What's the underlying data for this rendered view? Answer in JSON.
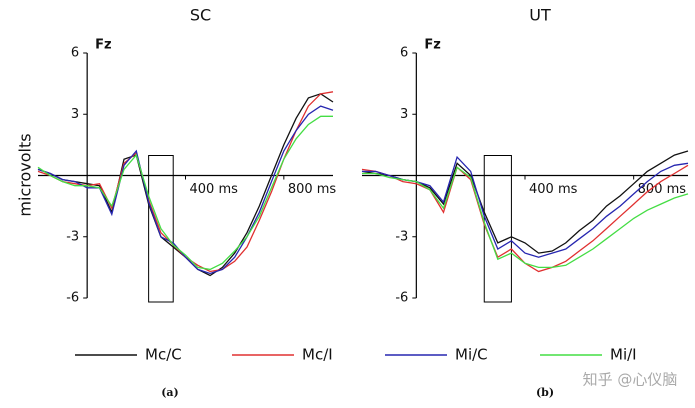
{
  "chart_data": [
    {
      "type": "line",
      "title": "SC",
      "annotation": "Fz",
      "y_label": "microvolts",
      "caption": "(a)",
      "x": [
        -200,
        -150,
        -100,
        -50,
        0,
        50,
        100,
        150,
        200,
        250,
        300,
        350,
        400,
        450,
        500,
        550,
        600,
        650,
        700,
        750,
        800,
        850,
        900,
        950,
        1000
      ],
      "xlim": [
        -200,
        1000
      ],
      "xticks": [
        {
          "value": 400,
          "label": "400 ms"
        },
        {
          "value": 800,
          "label": "800 ms"
        }
      ],
      "ylim": [
        -6,
        6
      ],
      "yticks": [
        -6,
        -3,
        3,
        6
      ],
      "highlight_window": [
        250,
        350
      ],
      "series": [
        {
          "name": "Mc/C",
          "color": "#111111",
          "values": [
            0.3,
            0.1,
            -0.2,
            -0.3,
            -0.4,
            -0.5,
            -1.8,
            0.8,
            1.0,
            -1.4,
            -3.0,
            -3.5,
            -4.0,
            -4.6,
            -4.9,
            -4.5,
            -3.8,
            -2.8,
            -1.5,
            0,
            1.5,
            2.8,
            3.8,
            4.0,
            3.6
          ]
        },
        {
          "name": "Mc/I",
          "color": "#e03030",
          "values": [
            0.2,
            0.0,
            -0.3,
            -0.4,
            -0.5,
            -0.4,
            -1.6,
            0.6,
            1.1,
            -1.2,
            -2.8,
            -3.4,
            -4.0,
            -4.4,
            -4.7,
            -4.6,
            -4.2,
            -3.5,
            -2.2,
            -0.8,
            0.8,
            2.2,
            3.4,
            4.0,
            4.1
          ]
        },
        {
          "name": "Mi/C",
          "color": "#2626b0",
          "values": [
            0.3,
            0.1,
            -0.2,
            -0.3,
            -0.6,
            -0.6,
            -1.9,
            0.5,
            1.2,
            -1.3,
            -3.0,
            -3.3,
            -4.0,
            -4.6,
            -4.8,
            -4.6,
            -4.0,
            -3.0,
            -1.8,
            -0.3,
            1.2,
            2.2,
            3.0,
            3.4,
            3.2
          ]
        },
        {
          "name": "Mi/I",
          "color": "#44dd44",
          "values": [
            0.4,
            0.0,
            -0.3,
            -0.5,
            -0.5,
            -0.6,
            -1.5,
            0.3,
            1.0,
            -1.0,
            -2.6,
            -3.4,
            -3.9,
            -4.5,
            -4.6,
            -4.3,
            -3.7,
            -3.0,
            -2.0,
            -0.6,
            0.8,
            1.8,
            2.5,
            2.9,
            2.9
          ]
        }
      ]
    },
    {
      "type": "line",
      "title": "UT",
      "annotation": "Fz",
      "caption": "(b)",
      "x": [
        -200,
        -150,
        -100,
        -50,
        0,
        50,
        100,
        150,
        200,
        250,
        300,
        350,
        400,
        450,
        500,
        550,
        600,
        650,
        700,
        750,
        800,
        850,
        900,
        950,
        1000
      ],
      "xlim": [
        -200,
        1000
      ],
      "xticks": [
        {
          "value": 400,
          "label": "400 ms"
        },
        {
          "value": 800,
          "label": "800 ms"
        }
      ],
      "ylim": [
        -6,
        6
      ],
      "yticks": [
        -6,
        -3,
        3,
        6
      ],
      "highlight_window": [
        250,
        350
      ],
      "series": [
        {
          "name": "Mc/C",
          "color": "#111111",
          "values": [
            0.2,
            0.1,
            0,
            -0.2,
            -0.3,
            -0.6,
            -1.4,
            0.6,
            0,
            -1.8,
            -3.3,
            -3.0,
            -3.3,
            -3.8,
            -3.7,
            -3.3,
            -2.7,
            -2.2,
            -1.5,
            -1.0,
            -0.4,
            0.2,
            0.6,
            1.0,
            1.2
          ]
        },
        {
          "name": "Mc/I",
          "color": "#e03030",
          "values": [
            0.3,
            0.2,
            0,
            -0.3,
            -0.4,
            -0.7,
            -1.8,
            0.4,
            -0.2,
            -2.4,
            -4.0,
            -3.6,
            -4.3,
            -4.7,
            -4.5,
            -4.2,
            -3.7,
            -3.2,
            -2.6,
            -2.0,
            -1.4,
            -0.8,
            -0.3,
            0.1,
            0.5
          ]
        },
        {
          "name": "Mi/C",
          "color": "#2626b0",
          "values": [
            0.2,
            0.2,
            0,
            -0.2,
            -0.3,
            -0.5,
            -1.3,
            0.9,
            0.2,
            -2.0,
            -3.6,
            -3.2,
            -3.8,
            -4.0,
            -3.8,
            -3.6,
            -3.1,
            -2.6,
            -2.0,
            -1.5,
            -0.9,
            -0.3,
            0.2,
            0.5,
            0.6
          ]
        },
        {
          "name": "Mi/I",
          "color": "#44dd44",
          "values": [
            0.1,
            0.1,
            -0.1,
            -0.2,
            -0.3,
            -0.7,
            -1.6,
            0.4,
            -0.1,
            -2.3,
            -4.1,
            -3.8,
            -4.3,
            -4.5,
            -4.5,
            -4.4,
            -4.0,
            -3.6,
            -3.1,
            -2.6,
            -2.1,
            -1.7,
            -1.4,
            -1.1,
            -0.9
          ]
        }
      ]
    }
  ],
  "watermark": "知乎 @心仪脑"
}
